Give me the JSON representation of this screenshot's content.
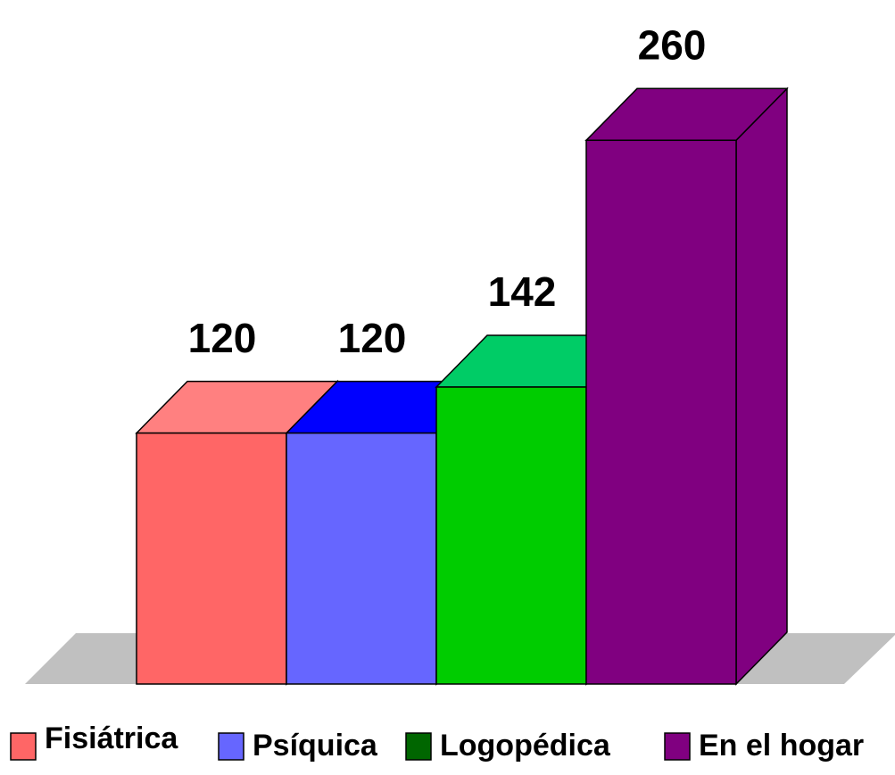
{
  "chart_data": {
    "type": "bar",
    "series": [
      {
        "name": "Fisiátrica",
        "color": "#ff6666",
        "top_color": "#ff8080",
        "values": [
          120
        ]
      },
      {
        "name": "Psíquica",
        "color": "#6666ff",
        "top_color": "#0000ff",
        "values": [
          120
        ]
      },
      {
        "name": "Logopédica",
        "color": "#00cc00",
        "top_color": "#00cc66",
        "legend_color": "#006600",
        "values": [
          142
        ]
      },
      {
        "name": "En el hogar",
        "color": "#800080",
        "top_color": "#800080",
        "values": [
          260
        ]
      }
    ]
  }
}
